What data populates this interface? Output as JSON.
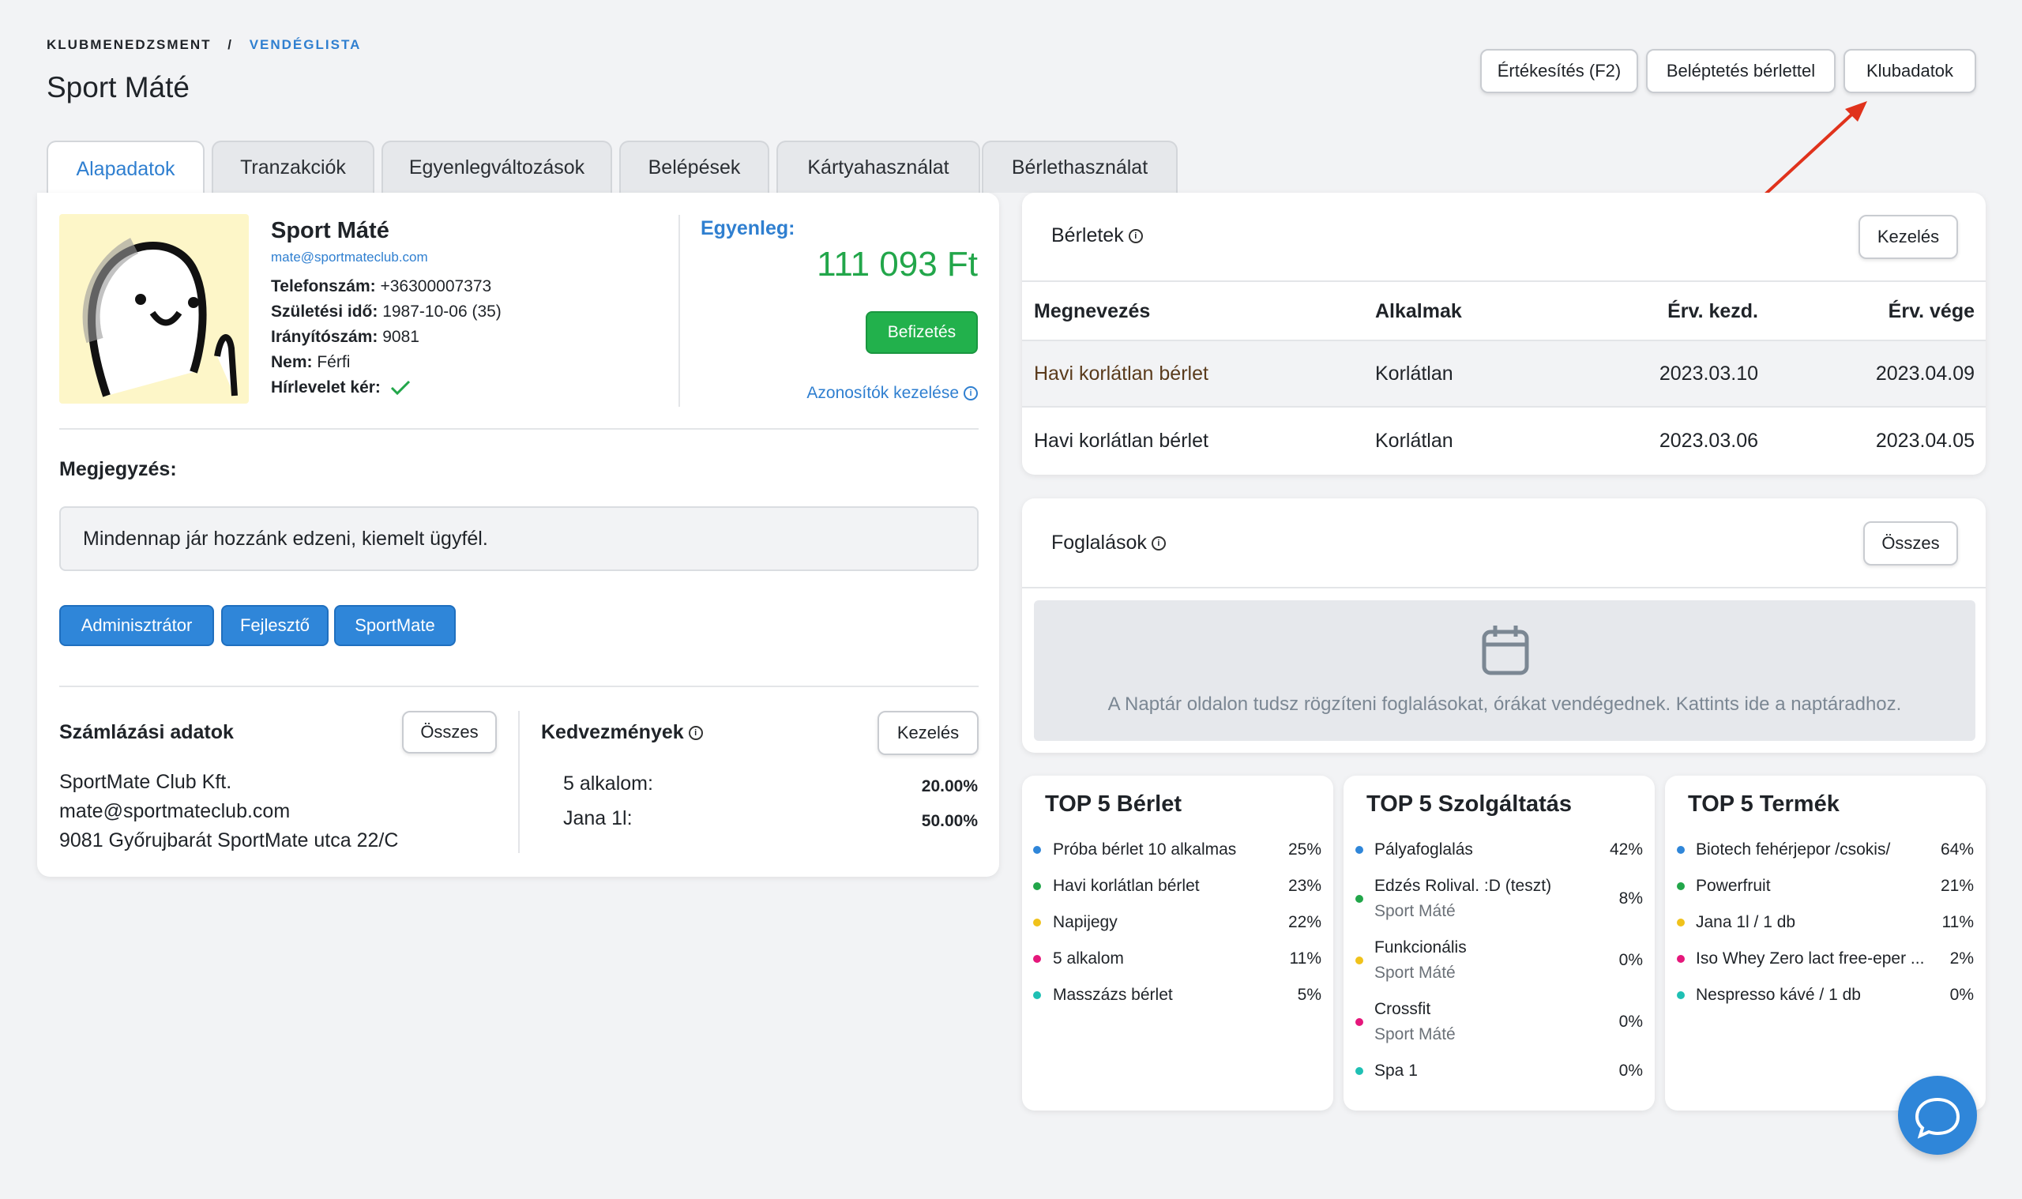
{
  "breadcrumb": {
    "parent": "KLUBMENEDZSMENT",
    "separator": "/",
    "current": "VENDÉGLISTA"
  },
  "page_title": "Sport Máté",
  "header_buttons": {
    "sell": "Értékesítés (F2)",
    "checkin": "Beléptetés bérlettel",
    "club": "Klubadatok"
  },
  "tabs": [
    "Alapadatok",
    "Tranzakciók",
    "Egyenlegváltozások",
    "Belépések",
    "Kártyahasználat",
    "Bérlethasználat"
  ],
  "profile": {
    "name": "Sport Máté",
    "email": "mate@sportmateclub.com",
    "phone_label": "Telefonszám:",
    "phone": "+36300007373",
    "birth_label": "Születési idő:",
    "birth": "1987-10-06 (35)",
    "zip_label": "Irányítószám:",
    "zip": "9081",
    "gender_label": "Nem:",
    "gender": "Férfi",
    "newsletter_label": "Hírlevelet kér:"
  },
  "balance": {
    "label": "Egyenleg:",
    "value": "111 093 Ft",
    "pay_button": "Befizetés",
    "ids_link": "Azonosítók kezelése"
  },
  "note": {
    "label": "Megjegyzés:",
    "text": "Mindennap jár hozzánk edzeni, kiemelt ügyfél."
  },
  "roles": [
    "Adminisztrátor",
    "Fejlesztő",
    "SportMate"
  ],
  "billing": {
    "title": "Számlázási adatok",
    "button": "Összes",
    "lines": [
      "SportMate Club Kft.",
      "mate@sportmateclub.com",
      "9081 Győrujbarát SportMate utca 22/C"
    ]
  },
  "discounts": {
    "title": "Kedvezmények",
    "button": "Kezelés",
    "items": [
      {
        "label": "5 alkalom:",
        "value": "20.00%"
      },
      {
        "label": "Jana 1l:",
        "value": "50.00%"
      }
    ]
  },
  "passes": {
    "title": "Bérletek",
    "button": "Kezelés",
    "headers": [
      "Megnevezés",
      "Alkalmak",
      "Érv. kezd.",
      "Érv. vége"
    ],
    "rows": [
      [
        "Havi korlátlan bérlet",
        "Korlátlan",
        "2023.03.10",
        "2023.04.09"
      ],
      [
        "Havi korlátlan bérlet",
        "Korlátlan",
        "2023.03.06",
        "2023.04.05"
      ]
    ]
  },
  "bookings": {
    "title": "Foglalások",
    "button": "Összes",
    "empty_text": "A Naptár oldalon tudsz rögzíteni foglalásokat, órákat vendégednek. Kattints ide a naptáradhoz."
  },
  "top_passes": {
    "title": "TOP 5 Bérlet",
    "items": [
      {
        "name": "Próba bérlet 10 alkalmas",
        "pct": "25%"
      },
      {
        "name": "Havi korlátlan bérlet",
        "pct": "23%"
      },
      {
        "name": "Napijegy",
        "pct": "22%"
      },
      {
        "name": "5 alkalom",
        "pct": "11%"
      },
      {
        "name": "Masszázs bérlet",
        "pct": "5%"
      }
    ]
  },
  "top_services": {
    "title": "TOP 5 Szolgáltatás",
    "items": [
      {
        "name": "Pályafoglalás",
        "sub": "",
        "pct": "42%"
      },
      {
        "name": "Edzés Rolival. :D (teszt)",
        "sub": "Sport Máté",
        "pct": "8%"
      },
      {
        "name": "Funkcionális",
        "sub": "Sport Máté",
        "pct": "0%"
      },
      {
        "name": "Crossfit",
        "sub": "Sport Máté",
        "pct": "0%"
      },
      {
        "name": "Spa 1",
        "sub": "",
        "pct": "0%"
      }
    ]
  },
  "top_products": {
    "title": "TOP 5 Termék",
    "items": [
      {
        "name": "Biotech fehérjepor /csokis/",
        "pct": "64%"
      },
      {
        "name": "Powerfruit",
        "pct": "21%"
      },
      {
        "name": "Jana 1l / 1 db",
        "pct": "11%"
      },
      {
        "name": "Iso Whey Zero lact free-eper ...",
        "pct": "2%"
      },
      {
        "name": "Nespresso kávé / 1 db",
        "pct": "0%"
      }
    ]
  },
  "colors": {
    "accent": "#2f7fd0",
    "green": "#22a64a",
    "dots": [
      "#2f86d9",
      "#22a64a",
      "#f0c21b",
      "#e5177b",
      "#1fc0b4"
    ],
    "arrow": "#e0321c"
  }
}
